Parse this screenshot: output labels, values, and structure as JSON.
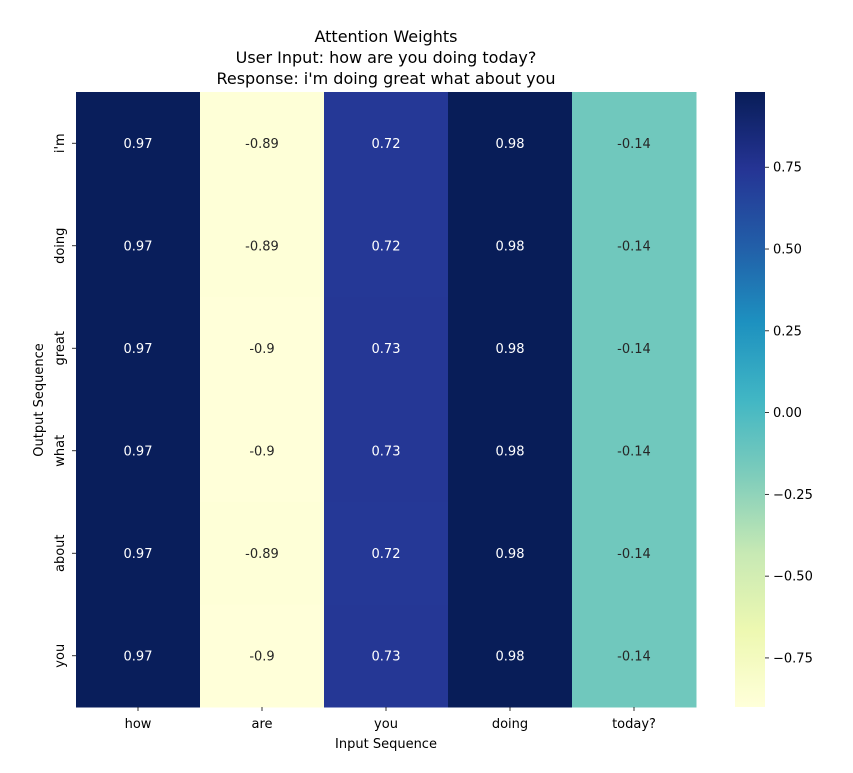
{
  "chart_data": {
    "type": "heatmap",
    "title": "Attention Weights",
    "subtitle_lines": [
      "User Input: how are you doing today?",
      "Response: i'm doing great what about you"
    ],
    "xlabel": "Input Sequence",
    "ylabel": "Output Sequence",
    "x_categories": [
      "how",
      "are",
      "you",
      "doing",
      "today?"
    ],
    "y_categories": [
      "i'm",
      "doing",
      "great",
      "what",
      "about",
      "you"
    ],
    "values": [
      [
        0.97,
        -0.89,
        0.72,
        0.98,
        -0.14
      ],
      [
        0.97,
        -0.89,
        0.72,
        0.98,
        -0.14
      ],
      [
        0.97,
        -0.9,
        0.73,
        0.98,
        -0.14
      ],
      [
        0.97,
        -0.9,
        0.73,
        0.98,
        -0.14
      ],
      [
        0.97,
        -0.89,
        0.72,
        0.98,
        -0.14
      ],
      [
        0.97,
        -0.9,
        0.73,
        0.98,
        -0.14
      ]
    ],
    "colormap": "YlGnBu",
    "color_range": [
      -0.9,
      0.98
    ],
    "colorbar_ticks": [
      0.75,
      0.5,
      0.25,
      0.0,
      -0.25,
      -0.5,
      -0.75
    ],
    "colorbar_tick_labels": [
      "0.75",
      "0.50",
      "0.25",
      "0.00",
      "−0.25",
      "−0.50",
      "−0.75"
    ],
    "annotations": true,
    "grid": false
  }
}
